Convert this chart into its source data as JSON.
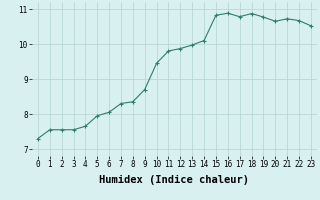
{
  "x": [
    0,
    1,
    2,
    3,
    4,
    5,
    6,
    7,
    8,
    9,
    10,
    11,
    12,
    13,
    14,
    15,
    16,
    17,
    18,
    19,
    20,
    21,
    22,
    23
  ],
  "y": [
    7.3,
    7.55,
    7.55,
    7.55,
    7.65,
    7.95,
    8.05,
    8.3,
    8.35,
    8.7,
    9.45,
    9.8,
    9.87,
    9.97,
    10.1,
    10.82,
    10.88,
    10.78,
    10.87,
    10.77,
    10.65,
    10.72,
    10.67,
    10.52
  ],
  "xlim": [
    -0.5,
    23.5
  ],
  "ylim": [
    6.8,
    11.2
  ],
  "yticks": [
    7,
    8,
    9,
    10,
    11
  ],
  "xticks": [
    0,
    1,
    2,
    3,
    4,
    5,
    6,
    7,
    8,
    9,
    10,
    11,
    12,
    13,
    14,
    15,
    16,
    17,
    18,
    19,
    20,
    21,
    22,
    23
  ],
  "xlabel": "Humidex (Indice chaleur)",
  "line_color": "#2e7d6e",
  "marker": "+",
  "background_color": "#d8f0f0",
  "grid_color": "#b8d8d8",
  "tick_label_fontsize": 5.5,
  "xlabel_fontsize": 7.5,
  "title": ""
}
